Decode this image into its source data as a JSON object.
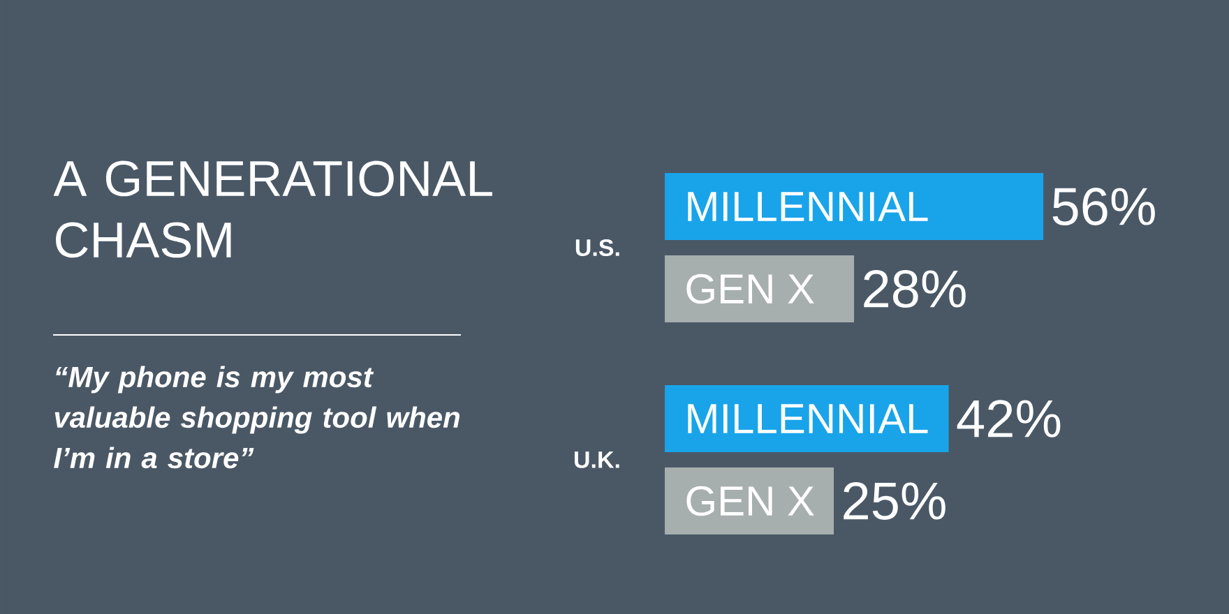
{
  "chart_data": {
    "type": "bar",
    "orientation": "horizontal",
    "title": "A GENERATIONAL CHASM",
    "annotations": [
      "“My phone is my most valuable shopping tool when I’m in a store”"
    ],
    "categories": [
      "U.S.",
      "U.K."
    ],
    "series": [
      {
        "name": "MILLENNIAL",
        "color": "#19a4ea",
        "values": [
          56,
          42
        ],
        "value_labels": [
          "56%",
          "42%"
        ]
      },
      {
        "name": "GEN X",
        "color": "#a7aeae",
        "values": [
          28,
          25
        ],
        "value_labels": [
          "28%",
          "25%"
        ]
      }
    ],
    "tick_labels": "y"
  }
}
